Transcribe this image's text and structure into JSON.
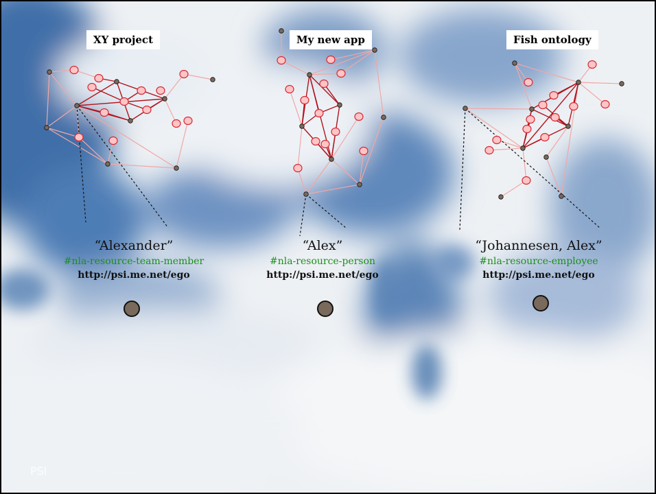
{
  "panels": [
    {
      "title": "XY project",
      "name": "“Alexander”",
      "type": "#nla-resource-team-member",
      "psi": "http://psi.me.net/ego"
    },
    {
      "title": "My new app",
      "name": "“Alex”",
      "type": "#nla-resource-person",
      "psi": "http://psi.me.net/ego"
    },
    {
      "title": "Fish ontology",
      "name": "“Johannesen, Alex”",
      "type": "#nla-resource-employee",
      "psi": "http://psi.me.net/ego"
    }
  ],
  "footer": "PSI",
  "colors": {
    "sky": "#3f6ea8",
    "cloud": "#ffffff",
    "strong_edge": "#b3121b",
    "faint_edge": "#f2a7a5",
    "node_fill": "#ffc4c6",
    "node_stroke": "#d42a33",
    "hub_fill": "#7a6a5c",
    "identifier_green": "#1a8f1a"
  },
  "icons": [
    "ego-node-icon",
    "graph-node-icon",
    "hub-node-icon"
  ]
}
